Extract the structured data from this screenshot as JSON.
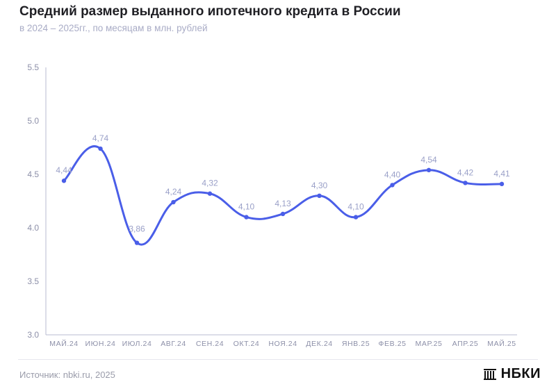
{
  "header": {
    "title": "Средний размер выданного ипотечного кредита в России",
    "subtitle": "в 2024 – 2025гг., по месяцам в млн. рублей"
  },
  "footer": {
    "source": "Источник: nbki.ru, 2025",
    "logo_text": "НБКИ"
  },
  "chart_data": {
    "type": "line",
    "categories": [
      "МАЙ.24",
      "ИЮН.24",
      "ИЮЛ.24",
      "АВГ.24",
      "СЕН.24",
      "ОКТ.24",
      "НОЯ.24",
      "ДЕК.24",
      "ЯНВ.25",
      "ФЕВ.25",
      "МАР.25",
      "АПР.25",
      "МАЙ.25"
    ],
    "values": [
      4.44,
      4.74,
      3.86,
      4.24,
      4.32,
      4.1,
      4.13,
      4.3,
      4.1,
      4.4,
      4.54,
      4.42,
      4.41
    ],
    "data_labels": [
      "4,44",
      "4,74",
      "3,86",
      "4,24",
      "4,32",
      "4,10",
      "4,13",
      "4,30",
      "4,10",
      "4,40",
      "4,54",
      "4,42",
      "4,41"
    ],
    "y_ticks": [
      "3.0",
      "3.5",
      "4.0",
      "4.5",
      "5.0",
      "5.5"
    ],
    "ylim": [
      3.0,
      5.5
    ],
    "line_color": "#4a5ee8",
    "axis_color": "#b8bbd0",
    "tick_color": "#8c8fa8",
    "label_color": "#9aa0c8",
    "grid": false,
    "legend": "none"
  }
}
